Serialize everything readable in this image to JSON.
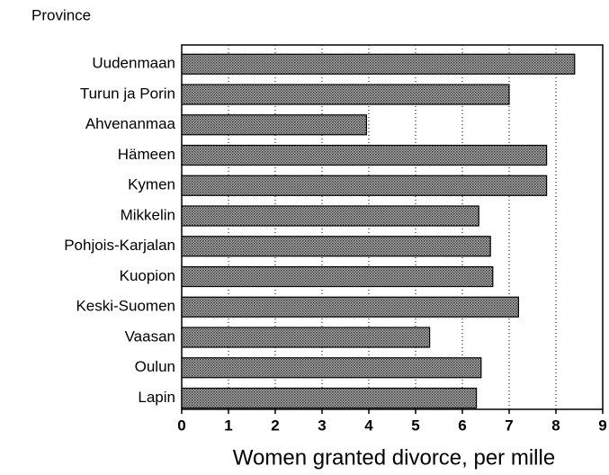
{
  "chart_data": {
    "type": "bar",
    "orientation": "horizontal",
    "y_axis_label": "Province",
    "x_axis_label": "Women granted divorce, per mille",
    "categories": [
      "Uudenmaan",
      "Turun ja Porin",
      "Ahvenanmaa",
      "Hämeen",
      "Kymen",
      "Mikkelin",
      "Pohjois-Karjalan",
      "Kuopion",
      "Keski-Suomen",
      "Vaasan",
      "Oulun",
      "Lapin"
    ],
    "values": [
      8.4,
      7.0,
      3.95,
      7.8,
      7.8,
      6.35,
      6.6,
      6.65,
      7.2,
      5.3,
      6.4,
      6.3
    ],
    "color": "#b0b0b0",
    "xlim": [
      0,
      9
    ],
    "xticks": [
      0,
      1,
      2,
      3,
      4,
      5,
      6,
      7,
      8,
      9
    ],
    "grid": true
  }
}
